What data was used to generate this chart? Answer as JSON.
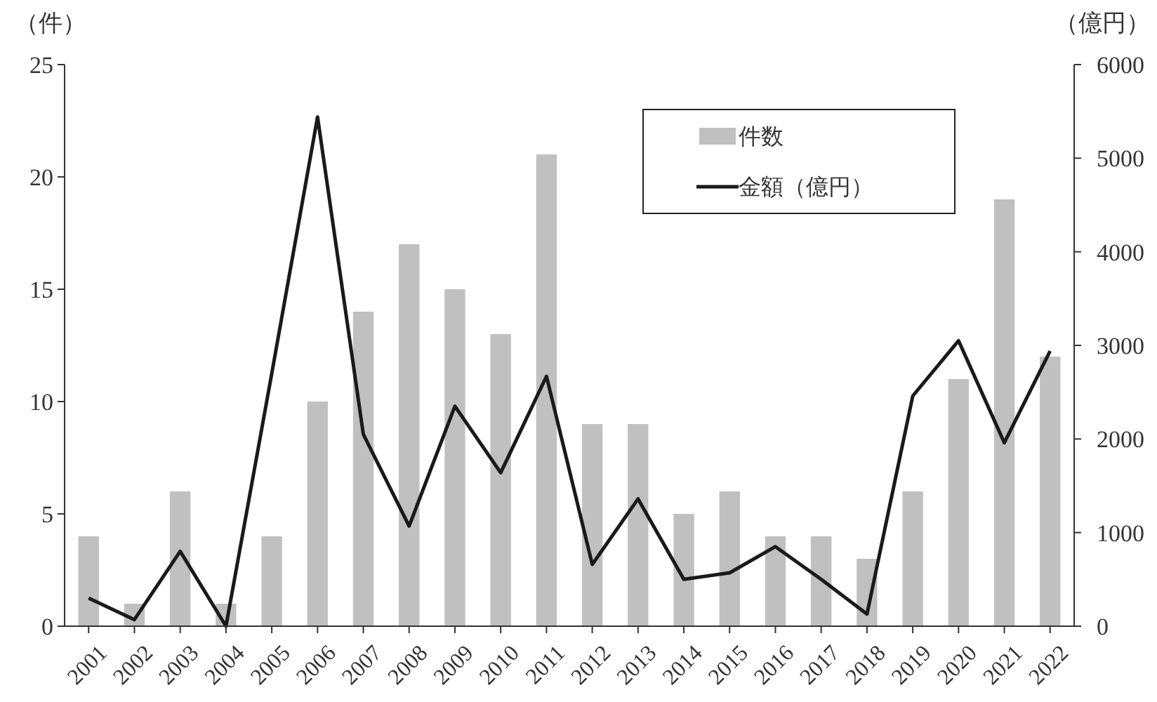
{
  "chart_data": {
    "type": "bar",
    "ylabel": "（件）",
    "y2label": "（億円）",
    "categories": [
      "2001",
      "2002",
      "2003",
      "2004",
      "2005",
      "2006",
      "2007",
      "2008",
      "2009",
      "2010",
      "2011",
      "2012",
      "2013",
      "2014",
      "2015",
      "2016",
      "2017",
      "2018",
      "2019",
      "2020",
      "2021",
      "2022"
    ],
    "series": [
      {
        "name": "件数",
        "color": "#c0c0c0",
        "values": [
          4,
          1,
          6,
          1,
          4,
          10,
          14,
          17,
          15,
          13,
          21,
          9,
          9,
          5,
          6,
          4,
          4,
          3,
          6,
          11,
          19,
          12
        ]
      },
      {
        "name": "金額（億円）",
        "type": "line",
        "axis": "y2",
        "color": "#1a1a1a",
        "values": [
          300,
          70,
          800,
          0,
          2700,
          5440,
          2050,
          1070,
          2350,
          1640,
          2670,
          660,
          1360,
          500,
          570,
          850,
          500,
          130,
          2460,
          3050,
          1960,
          2940
        ]
      }
    ],
    "ylim": [
      0,
      25
    ],
    "yticks": [
      0,
      5,
      10,
      15,
      20,
      25
    ],
    "y2lim": [
      0,
      6000
    ],
    "y2ticks": [
      0,
      1000,
      2000,
      3000,
      4000,
      5000,
      6000
    ],
    "grid": false,
    "legend": "top right",
    "line_style": "solid",
    "marker": "none"
  }
}
